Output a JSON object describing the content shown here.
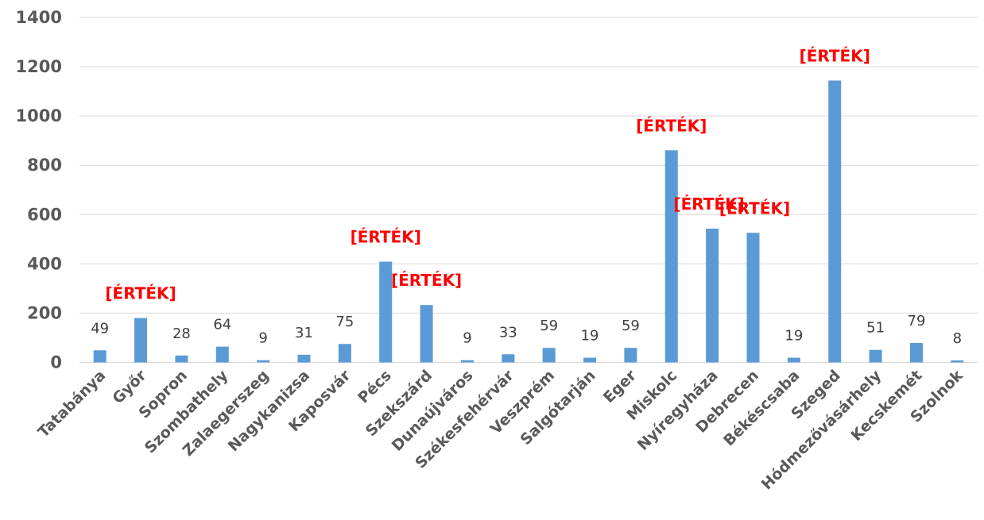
{
  "chart_data": {
    "type": "bar",
    "categories": [
      "Tatabánya",
      "Győr",
      "Sopron",
      "Szombathely",
      "Zalaegerszeg",
      "Nagykanizsa",
      "Kaposvár",
      "Pécs",
      "Szekszárd",
      "Dunaújváros",
      "Székesfehérvár",
      "Veszprém",
      "Salgótarján",
      "Eger",
      "Miskolc",
      "Nyíregyháza",
      "Debrecen",
      "Békéscsaba",
      "Szeged",
      "Hódmezővásárhely",
      "Kecskemét",
      "Szolnok"
    ],
    "values": [
      49,
      180,
      28,
      64,
      9,
      31,
      75,
      409,
      233,
      9,
      33,
      59,
      19,
      59,
      861,
      543,
      526,
      19,
      1144,
      51,
      79,
      8
    ],
    "data_labels": [
      "49",
      "[ÉRTÉK]",
      "28",
      "64",
      "9",
      "31",
      "75",
      "[ÉRTÉK]",
      "[ÉRTÉK]",
      "9",
      "33",
      "59",
      "19",
      "59",
      "[ÉRTÉK]",
      "[ÉRTÉK]",
      "[ÉRTÉK]",
      "19",
      "[ÉRTÉK]",
      "51",
      "79",
      "8"
    ],
    "highlight_label_color": "#ff0000",
    "bar_color": "#5b9bd5",
    "ylim": [
      0,
      1400
    ],
    "yticks": [
      0,
      200,
      400,
      600,
      800,
      1000,
      1200,
      1400
    ],
    "grid": true,
    "title": "",
    "xlabel": "",
    "ylabel": ""
  }
}
